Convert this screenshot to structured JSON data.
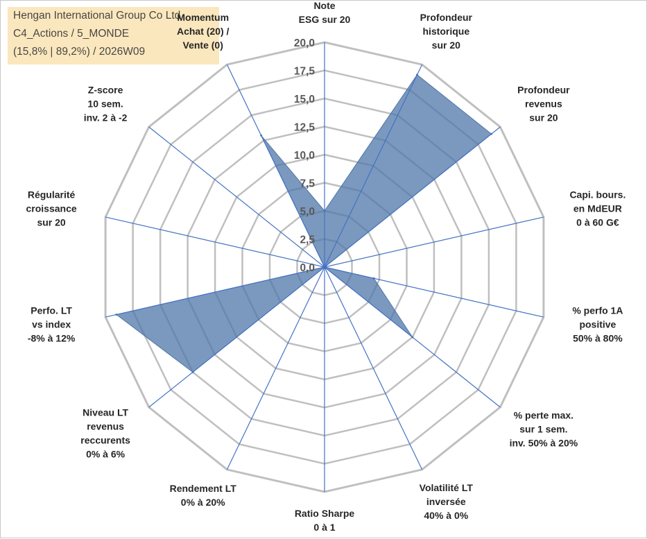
{
  "title": {
    "line1": "Hengan International Group Co Ltd",
    "line2": "C4_Actions / 5_MONDE",
    "line3": "(15,8% | 89,2%) / 2026W09"
  },
  "chart_data": {
    "type": "radar",
    "rlim": [
      0,
      20
    ],
    "tick_values": [
      0,
      2.5,
      5,
      7.5,
      10,
      12.5,
      15,
      17.5,
      20
    ],
    "tick_labels": [
      "0,0",
      "2,5",
      "5,0",
      "7,5",
      "10,0",
      "12,5",
      "15,0",
      "17,5",
      "20,0"
    ],
    "grid": true,
    "axes": [
      {
        "label": [
          "Note",
          "ESG sur 20"
        ],
        "value": 5
      },
      {
        "label": [
          "Profondeur",
          "historique",
          "sur 20"
        ],
        "value": 19
      },
      {
        "label": [
          "Profondeur",
          "revenus",
          "sur 20"
        ],
        "value": 19
      },
      {
        "label": [
          "Capi. bours.",
          "en MdEUR",
          "0 à 60 G€"
        ],
        "value": 0
      },
      {
        "label": [
          "% perfo 1A",
          "positive",
          "50% à 80%"
        ],
        "value": 4.5
      },
      {
        "label": [
          "% perte max.",
          "sur 1 sem.",
          "inv. 50% à 20%"
        ],
        "value": 10
      },
      {
        "label": [
          "Volatilité LT",
          "inversée",
          "40% à 0%"
        ],
        "value": 0
      },
      {
        "label": [
          "Ratio Sharpe",
          "0 à 1"
        ],
        "value": 0
      },
      {
        "label": [
          "Rendement LT",
          "0% à 20%"
        ],
        "value": 0
      },
      {
        "label": [
          "Niveau LT",
          "revenus",
          "reccurents",
          "0% à 6%"
        ],
        "value": 15
      },
      {
        "label": [
          "Perfo. LT",
          "vs index",
          "-8% à 12%"
        ],
        "value": 19
      },
      {
        "label": [
          "Régularité",
          "croissance",
          "sur 20"
        ],
        "value": 0
      },
      {
        "label": [
          "Z-score",
          "10 sem.",
          "inv. 2 à -2"
        ],
        "value": 0
      },
      {
        "label": [
          "Momentum",
          "Achat (20) /",
          "Vente (0)"
        ],
        "value": 13
      }
    ],
    "colors": {
      "fill": "#4f76a8",
      "fill_opacity": 0.75,
      "line": "#4472c4",
      "grid": "#bfbfbf"
    }
  }
}
